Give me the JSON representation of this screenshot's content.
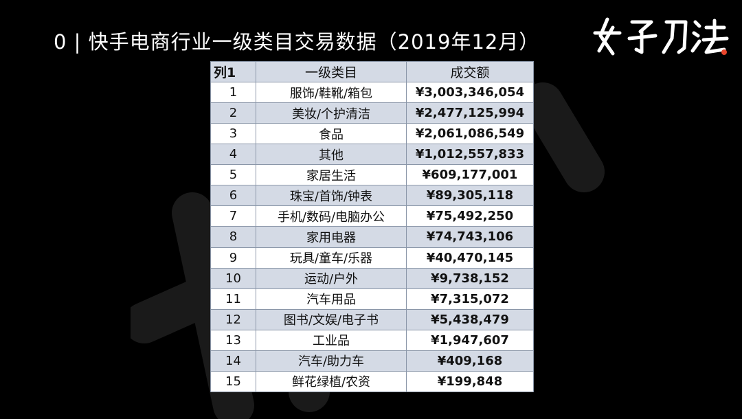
{
  "title": "0 | 快手电商行业一级类目交易数据（2019年12月）",
  "brand": "女子刀法",
  "table": {
    "headers": [
      "列1",
      "一级类目",
      "成交额"
    ],
    "rows": [
      {
        "id": "1",
        "category": "服饰/鞋靴/箱包",
        "amount": "¥3,003,346,054"
      },
      {
        "id": "2",
        "category": "美妆/个护清洁",
        "amount": "¥2,477,125,994"
      },
      {
        "id": "3",
        "category": "食品",
        "amount": "¥2,061,086,549"
      },
      {
        "id": "4",
        "category": "其他",
        "amount": "¥1,012,557,833"
      },
      {
        "id": "5",
        "category": "家居生活",
        "amount": "¥609,177,001"
      },
      {
        "id": "6",
        "category": "珠宝/首饰/钟表",
        "amount": "¥89,305,118"
      },
      {
        "id": "7",
        "category": "手机/数码/电脑办公",
        "amount": "¥75,492,250"
      },
      {
        "id": "8",
        "category": "家用电器",
        "amount": "¥74,743,106"
      },
      {
        "id": "9",
        "category": "玩具/童车/乐器",
        "amount": "¥40,470,145"
      },
      {
        "id": "10",
        "category": "运动/户外",
        "amount": "¥9,738,152"
      },
      {
        "id": "11",
        "category": "汽车用品",
        "amount": "¥7,315,072"
      },
      {
        "id": "12",
        "category": "图书/文娱/电子书",
        "amount": "¥5,438,479"
      },
      {
        "id": "13",
        "category": "工业品",
        "amount": "¥1,947,607"
      },
      {
        "id": "14",
        "category": "汽车/助力车",
        "amount": "¥409,168"
      },
      {
        "id": "15",
        "category": "鲜花绿植/农资",
        "amount": "¥199,848"
      }
    ]
  },
  "colors": {
    "background": "#000000",
    "header_fill": "#d4dae5",
    "accent": "#e8452c"
  }
}
